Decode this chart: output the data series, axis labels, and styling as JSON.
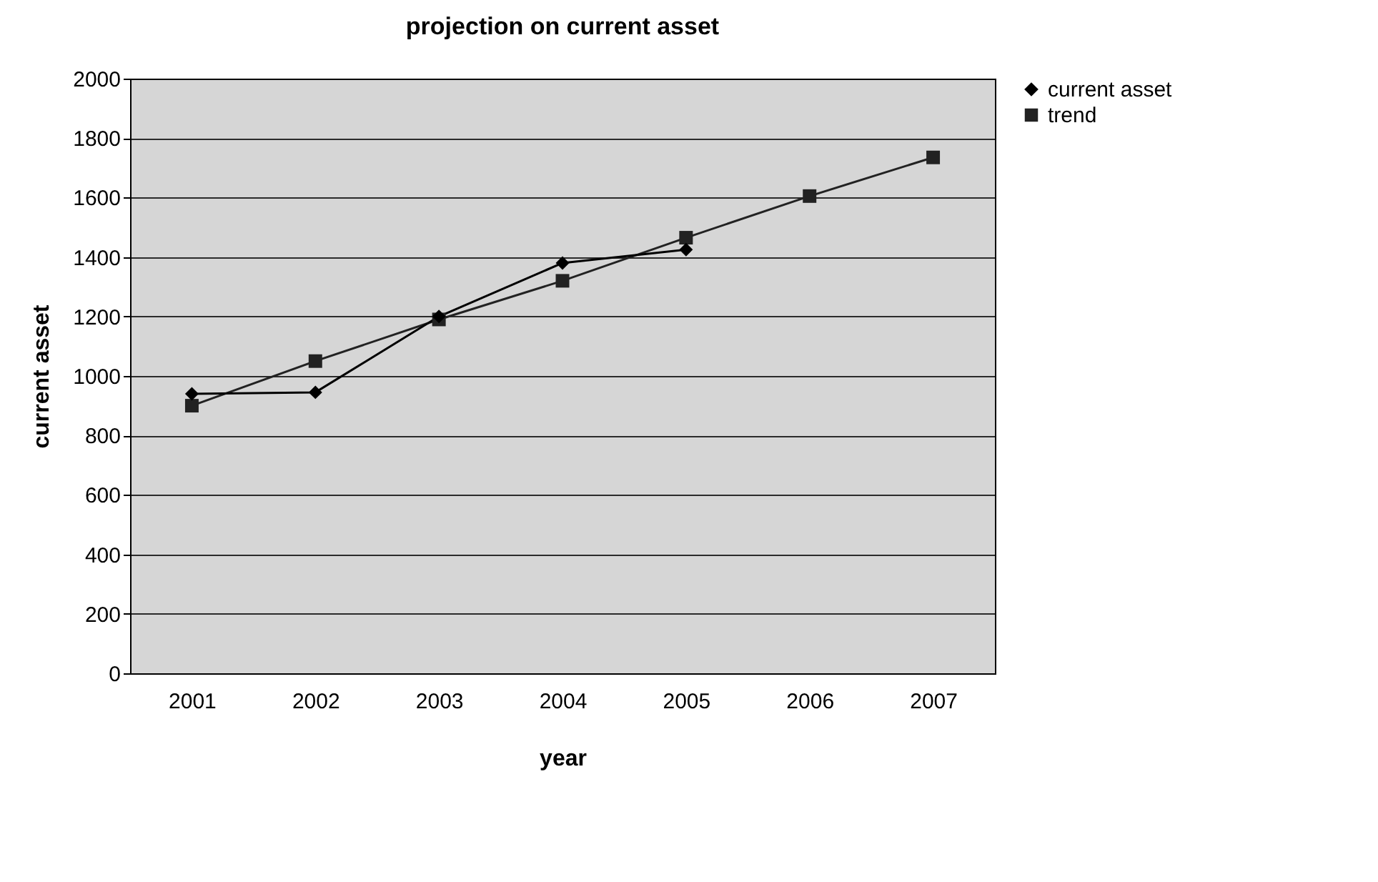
{
  "chart_data": {
    "type": "line",
    "title": "projection on current asset",
    "xlabel": "year",
    "ylabel": "current asset",
    "categories": [
      "2001",
      "2002",
      "2003",
      "2004",
      "2005",
      "2006",
      "2007"
    ],
    "series": [
      {
        "name": "current asset",
        "color": "#000000",
        "marker": "diamond",
        "values": [
          940,
          945,
          1200,
          1380,
          1425,
          null,
          null
        ]
      },
      {
        "name": "trend",
        "color": "#222222",
        "marker": "square",
        "values": [
          900,
          1050,
          1190,
          1320,
          1465,
          1605,
          1735
        ]
      }
    ],
    "ylim": [
      0,
      2000
    ],
    "yticks": [
      0,
      200,
      400,
      600,
      800,
      1000,
      1200,
      1400,
      1600,
      1800,
      2000
    ],
    "grid": "y",
    "legend": "right",
    "line_style": "solid"
  }
}
